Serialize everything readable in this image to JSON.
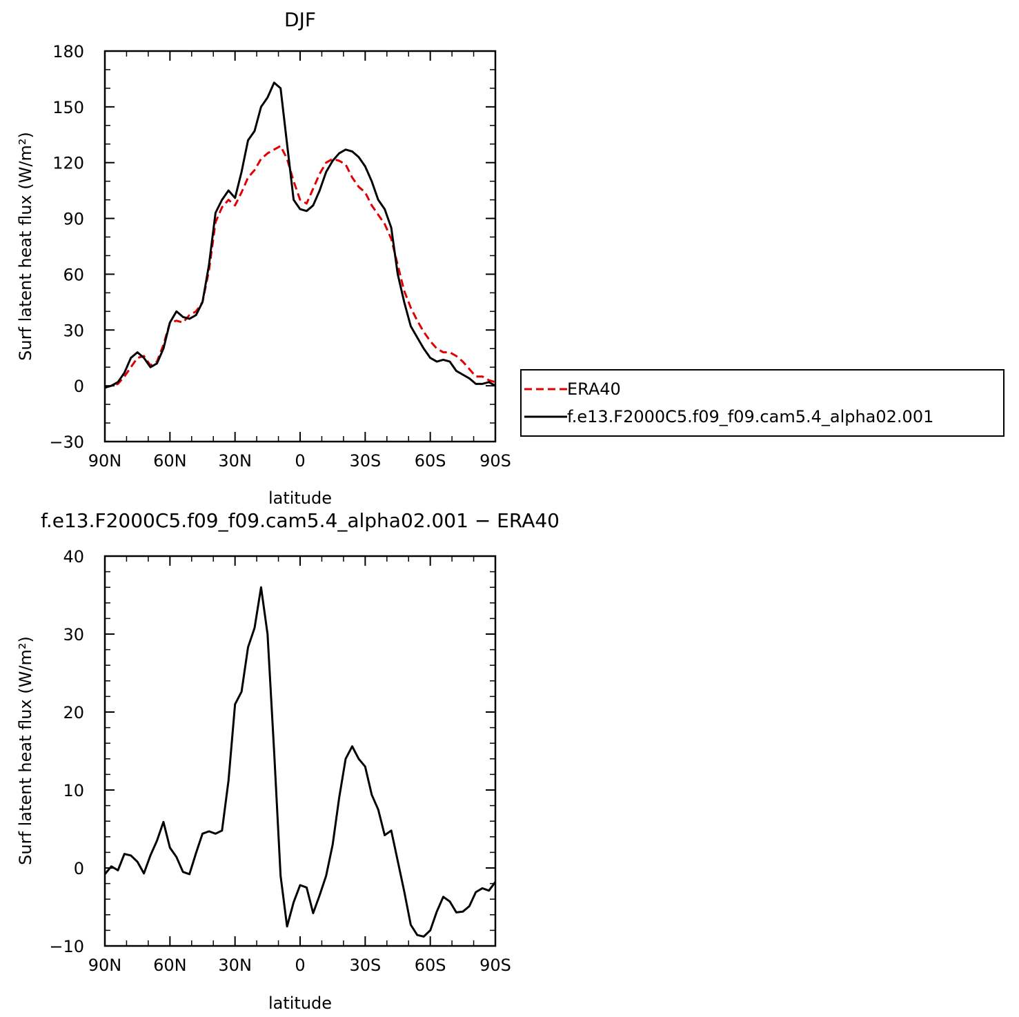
{
  "chart_data": [
    {
      "type": "line",
      "title": "DJF",
      "xlabel": "latitude",
      "ylabel": "Surf latent heat flux (W/m²)",
      "xlim": [
        90,
        -90
      ],
      "ylim": [
        -30,
        180
      ],
      "xticks": [
        90,
        60,
        30,
        0,
        -30,
        -60,
        -90
      ],
      "xtick_labels": [
        "90N",
        "60N",
        "30N",
        "0",
        "30S",
        "60S",
        "90S"
      ],
      "yticks": [
        -30,
        0,
        30,
        60,
        90,
        120,
        150,
        180
      ],
      "ytick_labels": [
        "−30",
        "0",
        "30",
        "60",
        "90",
        "120",
        "150",
        "180"
      ],
      "legend_position": "right",
      "series": [
        {
          "name": "ERA40",
          "color": "#e00000",
          "dash": "dashed",
          "x": [
            90,
            87,
            84,
            81,
            78,
            75,
            72,
            69,
            66,
            63,
            60,
            57,
            54,
            51,
            48,
            45,
            42,
            39,
            36,
            33,
            30,
            27,
            24,
            21,
            18,
            15,
            12,
            9,
            6,
            3,
            0,
            -3,
            -6,
            -9,
            -12,
            -15,
            -18,
            -21,
            -24,
            -27,
            -30,
            -33,
            -36,
            -39,
            -42,
            -45,
            -48,
            -51,
            -54,
            -57,
            -60,
            -63,
            -66,
            -69,
            -72,
            -75,
            -78,
            -81,
            -84,
            -87,
            -90
          ],
          "y": [
            -1,
            0,
            1,
            5,
            10,
            15,
            16,
            11,
            13,
            22,
            34,
            35,
            34,
            38,
            40,
            45,
            62,
            88,
            96,
            100,
            97,
            104,
            112,
            116,
            122,
            125,
            127,
            129,
            122,
            110,
            100,
            98,
            106,
            114,
            120,
            122,
            121,
            119,
            112,
            107,
            104,
            97,
            92,
            87,
            79,
            65,
            51,
            42,
            35,
            29,
            24,
            20,
            18,
            18,
            16,
            13,
            9,
            5,
            5,
            3,
            2
          ]
        },
        {
          "name": "f.e13.F2000C5.f09_f09.cam5.4_alpha02.001",
          "color": "#000000",
          "dash": "solid",
          "x": [
            90,
            87,
            84,
            81,
            78,
            75,
            72,
            69,
            66,
            63,
            60,
            57,
            54,
            51,
            48,
            45,
            42,
            39,
            36,
            33,
            30,
            27,
            24,
            21,
            18,
            15,
            12,
            9,
            6,
            3,
            0,
            -3,
            -6,
            -9,
            -12,
            -15,
            -18,
            -21,
            -24,
            -27,
            -30,
            -33,
            -36,
            -39,
            -42,
            -45,
            -48,
            -51,
            -54,
            -57,
            -60,
            -63,
            -66,
            -69,
            -72,
            -75,
            -78,
            -81,
            -84,
            -87,
            -90
          ],
          "y": [
            -1,
            0,
            2,
            7,
            15,
            18,
            15,
            10,
            12,
            20,
            34,
            40,
            37,
            36,
            38,
            45,
            65,
            93,
            100,
            105,
            101,
            115,
            132,
            137,
            150,
            155,
            163,
            160,
            130,
            100,
            95,
            94,
            97,
            105,
            115,
            121,
            125,
            127,
            126,
            123,
            118,
            110,
            100,
            95,
            85,
            60,
            45,
            32,
            26,
            20,
            15,
            13,
            14,
            13,
            8,
            6,
            4,
            1,
            1,
            2,
            0
          ]
        }
      ]
    },
    {
      "type": "line",
      "title": "f.e13.F2000C5.f09_f09.cam5.4_alpha02.001 − ERA40",
      "xlabel": "latitude",
      "ylabel": "Surf latent heat flux (W/m²)",
      "xlim": [
        90,
        -90
      ],
      "ylim": [
        -10,
        40
      ],
      "xticks": [
        90,
        60,
        30,
        0,
        -30,
        -60,
        -90
      ],
      "xtick_labels": [
        "90N",
        "60N",
        "30N",
        "0",
        "30S",
        "60S",
        "90S"
      ],
      "yticks": [
        -10,
        0,
        10,
        20,
        30,
        40
      ],
      "ytick_labels": [
        "−10",
        "0",
        "10",
        "20",
        "30",
        "40"
      ],
      "series": [
        {
          "color": "#000000",
          "dash": "solid",
          "x": [
            90,
            87,
            84,
            81,
            78,
            75,
            72,
            69,
            66,
            63,
            60,
            57,
            54,
            51,
            48,
            45,
            42,
            39,
            36,
            33,
            30,
            27,
            24,
            21,
            18,
            15,
            12,
            9,
            6,
            3,
            0,
            -3,
            -6,
            -9,
            -12,
            -15,
            -18,
            -21,
            -24,
            -27,
            -30,
            -33,
            -36,
            -39,
            -42,
            -45,
            -48,
            -51,
            -54,
            -57,
            -60,
            -63,
            -66,
            -69,
            -72,
            -75,
            -78,
            -81,
            -84,
            -87,
            -90
          ],
          "y": [
            -0.8,
            0.2,
            -0.3,
            1.8,
            1.6,
            0.8,
            -0.7,
            1.6,
            3.5,
            5.9,
            2.6,
            1.4,
            -0.5,
            -0.8,
            1.9,
            4.4,
            4.7,
            4.4,
            4.8,
            11.2,
            21.0,
            22.6,
            28.3,
            30.8,
            36.0,
            30.0,
            15.0,
            -1.0,
            -7.5,
            -4.4,
            -2.2,
            -2.5,
            -5.8,
            -3.5,
            -1.0,
            3.0,
            9.0,
            14.0,
            15.6,
            14.0,
            13.0,
            9.4,
            7.5,
            4.2,
            4.8,
            0.9,
            -3.0,
            -7.3,
            -8.6,
            -8.8,
            -8.0,
            -5.6,
            -3.7,
            -4.3,
            -5.7,
            -5.6,
            -4.9,
            -3.1,
            -2.6,
            -2.9,
            -1.8
          ]
        }
      ]
    }
  ]
}
